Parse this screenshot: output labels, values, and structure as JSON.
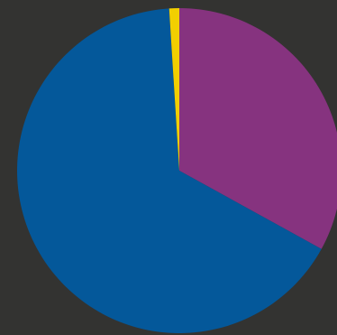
{
  "chart_data": {
    "type": "pie",
    "slices": [
      {
        "value": 33.0,
        "color": "#86337f"
      },
      {
        "value": 66.0,
        "color": "#04589a"
      },
      {
        "value": 1.0,
        "color": "#f2cf00"
      }
    ],
    "background": "#333331"
  }
}
